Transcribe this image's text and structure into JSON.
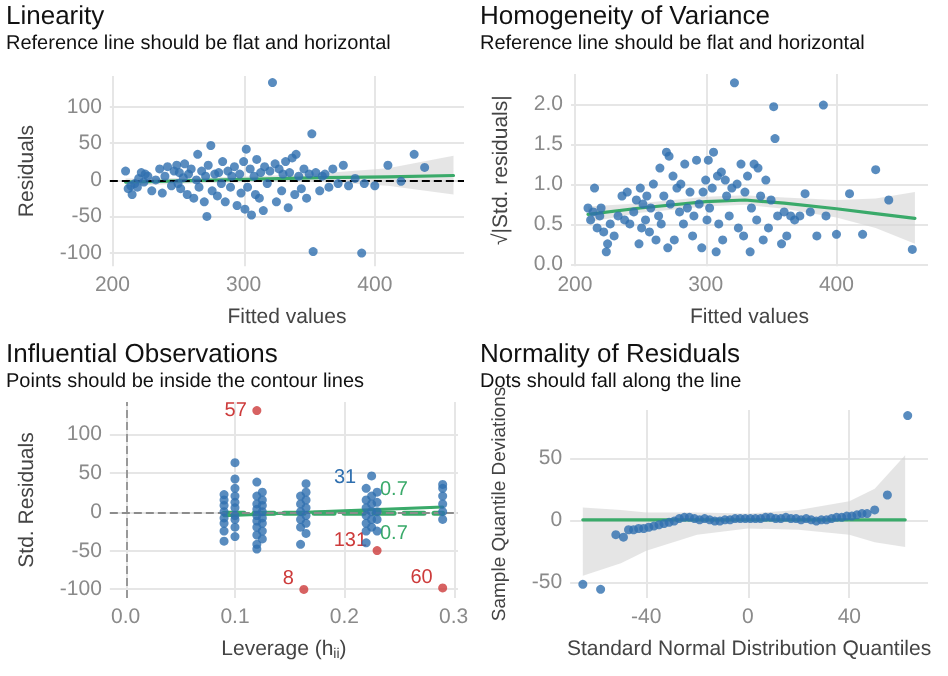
{
  "chart_data": [
    {
      "type": "scatter",
      "title": "Linearity",
      "subtitle": "Reference line should be flat and horizontal",
      "xlabel": "Fitted values",
      "ylabel": "Residuals",
      "xlim": [
        198,
        468
      ],
      "xticks": [
        200,
        300,
        400
      ],
      "ylim": [
        -118,
        142
      ],
      "yticks": [
        -100,
        -50,
        0,
        50,
        100
      ],
      "grid": true,
      "series": [
        {
          "type": "scatter",
          "marker": "circle",
          "color": "#2f6faf",
          "x": [
            210,
            212,
            214,
            215,
            217,
            219,
            220,
            222,
            224,
            225,
            227,
            230,
            233,
            236,
            238,
            240,
            242,
            245,
            247,
            249,
            250,
            251,
            252,
            254,
            255,
            257,
            258,
            260,
            262,
            264,
            265,
            266,
            268,
            270,
            271,
            272,
            273,
            275,
            276,
            278,
            280,
            281,
            283,
            284,
            286,
            288,
            290,
            291,
            293,
            295,
            297,
            298,
            300,
            301,
            302,
            303,
            305,
            306,
            308,
            309,
            310,
            312,
            313,
            315,
            316,
            318,
            320,
            322,
            324,
            325,
            327,
            329,
            330,
            332,
            334,
            335,
            337,
            339,
            340,
            342,
            344,
            346,
            348,
            350,
            352,
            353,
            355,
            358,
            360,
            362,
            365,
            368,
            372,
            376,
            380,
            385,
            390,
            392,
            400,
            410,
            420,
            430,
            438
          ],
          "values": [
            12,
            -12,
            -8,
            -20,
            -5,
            -10,
            2,
            10,
            -3,
            8,
            5,
            -15,
            0,
            15,
            -18,
            5,
            18,
            -8,
            12,
            20,
            -5,
            10,
            -12,
            3,
            22,
            -20,
            8,
            15,
            -25,
            0,
            35,
            -10,
            12,
            -30,
            5,
            -50,
            20,
            47,
            -15,
            8,
            -22,
            10,
            -5,
            25,
            -30,
            12,
            -10,
            5,
            18,
            -35,
            8,
            -18,
            25,
            -40,
            42,
            -10,
            15,
            -48,
            5,
            -20,
            28,
            -25,
            10,
            -42,
            18,
            -5,
            12,
            133,
            22,
            -30,
            15,
            -15,
            8,
            25,
            -38,
            10,
            30,
            -20,
            35,
            5,
            -12,
            15,
            -25,
            8,
            63,
            -98,
            10,
            -15,
            5,
            8,
            -10,
            15,
            -5,
            20,
            -8,
            2,
            -100,
            -5,
            -8,
            20,
            -2,
            35,
            17
          ]
        },
        {
          "type": "line",
          "marker": "none",
          "color": "#3aaa6a",
          "x": [
            210,
            260,
            310,
            360,
            410,
            460
          ],
          "values": [
            -3,
            -1,
            1,
            3,
            4,
            6
          ],
          "lower": [
            -8,
            -5,
            -3,
            -3,
            -8,
            -20
          ],
          "upper": [
            2,
            3,
            5,
            9,
            16,
            33
          ]
        }
      ],
      "ref_lines": [
        {
          "axis": "y",
          "value": 0,
          "color": "#000000",
          "line_style": "dashed"
        }
      ]
    },
    {
      "type": "scatter",
      "title": "Homogeneity of Variance",
      "subtitle": "Reference line should be flat and horizontal",
      "xlabel": "Fitted values",
      "ylabel": "√|Std. residuals|",
      "xlim": [
        197,
        470
      ],
      "xticks": [
        200,
        300,
        400
      ],
      "ylim": [
        -0.03,
        2.38
      ],
      "yticks": [
        {
          "value": 0,
          "label": "0.0"
        },
        {
          "value": 0.5,
          "label": "0.5"
        },
        {
          "value": 1,
          "label": "1.0"
        },
        {
          "value": 1.5,
          "label": "1.5"
        },
        {
          "value": 2,
          "label": "2.0"
        }
      ],
      "grid": true,
      "series": [
        {
          "type": "scatter",
          "marker": "circle",
          "color": "#2f6faf",
          "x": [
            210,
            212,
            214,
            215,
            217,
            219,
            220,
            222,
            224,
            225,
            227,
            230,
            233,
            236,
            238,
            240,
            242,
            245,
            247,
            249,
            250,
            251,
            252,
            254,
            255,
            257,
            258,
            260,
            262,
            264,
            265,
            266,
            268,
            270,
            271,
            272,
            273,
            275,
            276,
            278,
            280,
            281,
            283,
            284,
            286,
            288,
            290,
            291,
            293,
            295,
            297,
            298,
            300,
            301,
            302,
            303,
            305,
            306,
            308,
            309,
            310,
            312,
            313,
            315,
            316,
            318,
            320,
            322,
            324,
            325,
            327,
            329,
            330,
            332,
            334,
            335,
            337,
            339,
            340,
            342,
            344,
            346,
            348,
            350,
            352,
            353,
            355,
            358,
            360,
            362,
            365,
            368,
            372,
            376,
            380,
            385,
            390,
            392,
            400,
            410,
            420,
            430,
            440,
            458
          ],
          "values": [
            0.7,
            0.55,
            0.65,
            0.95,
            0.45,
            0.6,
            0.7,
            0.4,
            0.15,
            0.25,
            0.5,
            0.35,
            0.6,
            0.85,
            0.55,
            0.9,
            0.5,
            0.65,
            0.8,
            0.25,
            0.95,
            0.45,
            0.75,
            0.55,
            0.85,
            0.4,
            0.7,
            1.0,
            0.3,
            0.6,
            1.2,
            0.5,
            0.85,
            1.4,
            0.2,
            1.35,
            0.75,
            1.1,
            0.3,
            0.95,
            0.65,
            1.0,
            0.5,
            1.25,
            0.7,
            0.9,
            0.35,
            0.6,
            1.3,
            0.75,
            0.2,
            0.9,
            1.05,
            0.55,
            1.3,
            0.7,
            0.95,
            1.4,
            0.15,
            1.1,
            0.5,
            1.15,
            0.3,
            1.05,
            0.85,
            0.6,
            0.95,
            2.27,
            1.0,
            0.45,
            1.25,
            0.35,
            0.9,
            1.1,
            0.15,
            0.7,
            1.25,
            0.55,
            1.2,
            0.85,
            0.3,
            1.05,
            0.45,
            0.8,
            1.97,
            1.57,
            0.6,
            0.25,
            0.65,
            0.35,
            0.6,
            0.55,
            0.6,
            0.88,
            0.65,
            0.35,
            1.99,
            0.6,
            0.37,
            0.88,
            0.37,
            1.18,
            0.8,
            0.18
          ]
        },
        {
          "type": "line",
          "marker": "none",
          "color": "#3aaa6a",
          "x": [
            210,
            250,
            300,
            330,
            360,
            400,
            430,
            460
          ],
          "values": [
            0.62,
            0.7,
            0.78,
            0.8,
            0.76,
            0.69,
            0.63,
            0.57
          ],
          "lower": [
            0.52,
            0.64,
            0.72,
            0.74,
            0.69,
            0.58,
            0.45,
            0.25
          ],
          "upper": [
            0.72,
            0.76,
            0.84,
            0.86,
            0.83,
            0.8,
            0.82,
            0.9
          ]
        }
      ]
    },
    {
      "type": "scatter",
      "title": "Influential Observations",
      "subtitle": "Points should be inside the contour lines",
      "xlabel": "Leverage (h$_{ii}$)",
      "ylabel": "Std. Residuals",
      "xlim": [
        -0.0145,
        0.304
      ],
      "xticks": [
        {
          "value": 0,
          "label": "0.0"
        },
        {
          "value": 0.1,
          "label": "0.1"
        },
        {
          "value": 0.2,
          "label": "0.2"
        },
        {
          "value": 0.3,
          "label": "0.3"
        }
      ],
      "ylim": [
        -111,
        141
      ],
      "yticks": [
        -100,
        -50,
        0,
        50,
        100
      ],
      "grid": true,
      "series": [
        {
          "type": "scatter",
          "marker": "circle",
          "color": "#2f6faf",
          "x": [
            0.09,
            0.09,
            0.09,
            0.09,
            0.09,
            0.09,
            0.09,
            0.09,
            0.1,
            0.1,
            0.1,
            0.1,
            0.1,
            0.1,
            0.1,
            0.1,
            0.1,
            0.1,
            0.12,
            0.12,
            0.12,
            0.12,
            0.12,
            0.12,
            0.12,
            0.12,
            0.12,
            0.12,
            0.125,
            0.125,
            0.125,
            0.125,
            0.125,
            0.125,
            0.125,
            0.125,
            0.16,
            0.16,
            0.16,
            0.16,
            0.16,
            0.16,
            0.165,
            0.165,
            0.165,
            0.165,
            0.165,
            0.165,
            0.165,
            0.22,
            0.22,
            0.22,
            0.22,
            0.22,
            0.22,
            0.22,
            0.225,
            0.225,
            0.225,
            0.225,
            0.225,
            0.225,
            0.23,
            0.23,
            0.23,
            0.23,
            0.23,
            0.29,
            0.29,
            0.29,
            0.29,
            0.29,
            0.29
          ],
          "values": [
            -38,
            -25,
            -15,
            -8,
            0,
            8,
            15,
            22,
            -32,
            -20,
            -10,
            -5,
            5,
            12,
            20,
            30,
            42,
            63,
            -48,
            -42,
            -30,
            -20,
            -12,
            -5,
            3,
            10,
            20,
            38,
            -35,
            -25,
            -15,
            -8,
            0,
            8,
            15,
            25,
            -42,
            -20,
            -10,
            0,
            10,
            20,
            -28,
            -15,
            -5,
            5,
            15,
            25,
            36,
            -40,
            -25,
            -15,
            -5,
            5,
            15,
            30,
            -20,
            -10,
            0,
            10,
            20,
            46,
            -25,
            -10,
            0,
            12,
            25,
            -10,
            0,
            10,
            20,
            30,
            35
          ]
        },
        {
          "type": "scatter",
          "marker": "circle",
          "color": "#cd3b3b",
          "x": [
            0.12,
            0.163,
            0.23,
            0.29
          ],
          "values": [
            130,
            -100,
            -50,
            -98
          ]
        },
        {
          "type": "line",
          "marker": "none",
          "color": "#3aaa6a",
          "line_style": "dashed",
          "x": [
            0.09,
            0.29
          ],
          "values": [
            -2,
            -2
          ]
        },
        {
          "type": "line",
          "marker": "none",
          "color": "#3aaa6a",
          "x": [
            0.09,
            0.29
          ],
          "values": [
            -5,
            6
          ]
        }
      ],
      "ref_lines": [
        {
          "axis": "x",
          "value": 0,
          "color": "#999999",
          "line_style": "dashed"
        },
        {
          "axis": "y",
          "value": 0,
          "color": "#8c8c8c",
          "line_style": "dashed"
        }
      ],
      "annotations": [
        {
          "text": "57",
          "x": 0.12,
          "y": 130
        },
        {
          "text": "8",
          "x": 0.163,
          "y": -100
        },
        {
          "text": "131",
          "x": 0.23,
          "y": -50
        },
        {
          "text": "60",
          "x": 0.29,
          "y": -98
        },
        {
          "text": "31",
          "x": 0.22,
          "y": 30
        },
        "0.7",
        "0.7"
      ]
    },
    {
      "type": "scatter",
      "title": "Normality of Residuals",
      "subtitle": "Dots should fall along the line",
      "xlabel": "Standard Normal Distribution Quantiles",
      "ylabel": "Sample Quantile Deviations",
      "xlim": [
        -70,
        71
      ],
      "xticks": [
        -40,
        0,
        40
      ],
      "ylim": [
        -63,
        88.5
      ],
      "yticks": [
        -50,
        0,
        50
      ],
      "grid": true,
      "series": [
        {
          "type": "line",
          "marker": "none",
          "color": "#3aaa6a",
          "x": [
            -65,
            -50,
            -40,
            -20,
            0,
            20,
            40,
            50,
            62
          ],
          "values": [
            0,
            0,
            0,
            0,
            0,
            0,
            0,
            0,
            0
          ],
          "lower": [
            -45,
            -35,
            -25,
            -12,
            -7,
            -8,
            -12,
            -18,
            -22
          ],
          "upper": [
            10,
            8,
            6,
            6,
            5,
            8,
            15,
            25,
            52
          ]
        },
        {
          "type": "scatter",
          "marker": "circle",
          "color": "#2f6faf",
          "x": [
            -65,
            -58,
            -52,
            -49,
            -47,
            -45,
            -43,
            -41,
            -39,
            -37,
            -35,
            -33,
            -31,
            -29,
            -27,
            -25,
            -23,
            -21,
            -19,
            -17,
            -15,
            -13,
            -11,
            -9,
            -7,
            -5,
            -3,
            -1,
            1,
            3,
            5,
            7,
            9,
            11,
            13,
            15,
            17,
            19,
            21,
            23,
            25,
            27,
            29,
            31,
            33,
            35,
            37,
            39,
            41,
            43,
            45,
            47,
            50,
            55,
            63
          ],
          "values": [
            -52,
            -56,
            -12,
            -14,
            -8,
            -8,
            -7,
            -7,
            -6,
            -5,
            -4,
            -3,
            -2,
            -1,
            1,
            2,
            2,
            1,
            0,
            1,
            0,
            -1,
            -1,
            0,
            0,
            1,
            1,
            1,
            1,
            1,
            1,
            2,
            2,
            1,
            1,
            2,
            1,
            1,
            0,
            1,
            0,
            -1,
            0,
            0,
            1,
            2,
            2,
            3,
            3,
            4,
            5,
            5,
            8,
            20,
            84
          ]
        }
      ]
    }
  ]
}
